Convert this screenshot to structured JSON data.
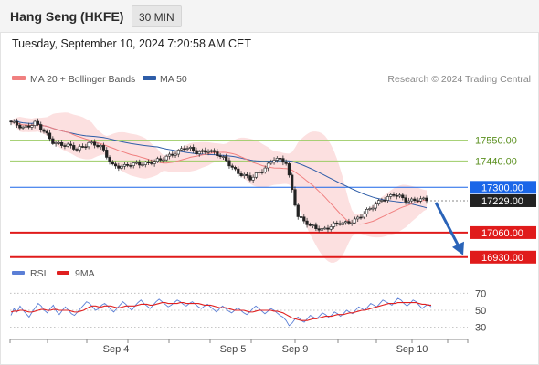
{
  "header": {
    "title": "Hang Seng (HKFE)",
    "timeframe": "30 MIN"
  },
  "datetime": "Tuesday, September 10, 2024 7:20:58 AM CET",
  "legend": {
    "ma20": {
      "label": "MA 20 + Bollinger Bands",
      "color": "#f08080"
    },
    "ma50": {
      "label": "MA 50",
      "color": "#2e5da8"
    },
    "copyright": "Research © 2024 Trading Central"
  },
  "rsi_legend": {
    "rsi": {
      "label": "RSI",
      "color": "#5b7fd6"
    },
    "ma9": {
      "label": "9MA",
      "color": "#e02020"
    }
  },
  "chart_data": [
    {
      "type": "candlestick",
      "title": "Hang Seng (HKFE)",
      "ylim": [
        16900,
        17790
      ],
      "x_ticks": [
        "Sep 4",
        "Sep 5",
        "Sep 9",
        "Sep 10"
      ],
      "levels": [
        {
          "value": 17550,
          "label": "17550.00",
          "kind": "resistance",
          "color": "#9ccc65"
        },
        {
          "value": 17440,
          "label": "17440.00",
          "kind": "resistance",
          "color": "#9ccc65"
        },
        {
          "value": 17300,
          "label": "17300.00",
          "kind": "pivot",
          "color": "#1a66e8"
        },
        {
          "value": 17229,
          "label": "17229.00",
          "kind": "last",
          "color": "#222222"
        },
        {
          "value": 17060,
          "label": "17060.00",
          "kind": "support",
          "color": "#e01b1b"
        },
        {
          "value": 16930,
          "label": "16930.00",
          "kind": "support",
          "color": "#e01b1b"
        }
      ],
      "forecast_arrow": {
        "from": 17229,
        "to": 16930,
        "color": "#2a63b8"
      },
      "anchors": [
        {
          "i": 0,
          "v": 17640
        },
        {
          "i": 4,
          "v": 17620
        },
        {
          "i": 8,
          "v": 17640
        },
        {
          "i": 14,
          "v": 17545
        },
        {
          "i": 22,
          "v": 17500
        },
        {
          "i": 26,
          "v": 17540
        },
        {
          "i": 30,
          "v": 17510
        },
        {
          "i": 34,
          "v": 17420
        },
        {
          "i": 38,
          "v": 17410
        },
        {
          "i": 44,
          "v": 17430
        },
        {
          "i": 50,
          "v": 17440
        },
        {
          "i": 54,
          "v": 17480
        },
        {
          "i": 58,
          "v": 17510
        },
        {
          "i": 62,
          "v": 17485
        },
        {
          "i": 66,
          "v": 17500
        },
        {
          "i": 72,
          "v": 17440
        },
        {
          "i": 76,
          "v": 17380
        },
        {
          "i": 80,
          "v": 17340
        },
        {
          "i": 84,
          "v": 17395
        },
        {
          "i": 88,
          "v": 17450
        },
        {
          "i": 92,
          "v": 17430
        },
        {
          "i": 96,
          "v": 17150
        },
        {
          "i": 100,
          "v": 17090
        },
        {
          "i": 104,
          "v": 17080
        },
        {
          "i": 108,
          "v": 17100
        },
        {
          "i": 112,
          "v": 17110
        },
        {
          "i": 116,
          "v": 17140
        },
        {
          "i": 120,
          "v": 17180
        },
        {
          "i": 124,
          "v": 17240
        },
        {
          "i": 128,
          "v": 17260
        },
        {
          "i": 132,
          "v": 17230
        },
        {
          "i": 136,
          "v": 17240
        },
        {
          "i": 139,
          "v": 17229
        }
      ],
      "candle_count": 140
    },
    {
      "type": "line",
      "title": "RSI",
      "ylim": [
        20,
        80
      ],
      "yticks": [
        70,
        50,
        30
      ],
      "series": [
        {
          "name": "RSI",
          "values": [
            44,
            52,
            48,
            55,
            50,
            46,
            42,
            48,
            53,
            58,
            55,
            50,
            47,
            52,
            56,
            49,
            45,
            50,
            54,
            50,
            46,
            44,
            48,
            52,
            56,
            60,
            58,
            54,
            50,
            52,
            56,
            58,
            55,
            51,
            48,
            52,
            56,
            60,
            57,
            53,
            50,
            55,
            59,
            62,
            58,
            55,
            52,
            56,
            60,
            63,
            60,
            57,
            54,
            56,
            59,
            62,
            60,
            57,
            55,
            58,
            60,
            57,
            54,
            52,
            55,
            57,
            54,
            51,
            48,
            52,
            55,
            52,
            49,
            47,
            50,
            53,
            50,
            47,
            45,
            48,
            52,
            55,
            52,
            49,
            46,
            49,
            52,
            50,
            47,
            44,
            42,
            38,
            32,
            35,
            40,
            42,
            38,
            36,
            40,
            44,
            42,
            40,
            43,
            47,
            45,
            42,
            44,
            48,
            46,
            43,
            46,
            50,
            48,
            46,
            50,
            54,
            52,
            50,
            54,
            58,
            56,
            54,
            58,
            62,
            60,
            58,
            56,
            60,
            64,
            62,
            58,
            55,
            58,
            62,
            60,
            56,
            52,
            55,
            57,
            54
          ]
        },
        {
          "name": "9MA",
          "values": [
            48,
            49,
            49,
            50,
            50,
            49,
            48,
            48,
            49,
            50,
            51,
            51,
            50,
            50,
            51,
            51,
            50,
            50,
            50,
            50,
            49,
            48,
            48,
            49,
            50,
            52,
            54,
            55,
            55,
            54,
            54,
            55,
            55,
            55,
            54,
            53,
            53,
            54,
            55,
            55,
            55,
            55,
            56,
            57,
            57,
            57,
            56,
            56,
            57,
            58,
            59,
            59,
            58,
            58,
            58,
            58,
            59,
            59,
            58,
            58,
            58,
            58,
            58,
            57,
            56,
            56,
            56,
            55,
            54,
            53,
            53,
            53,
            52,
            51,
            50,
            50,
            50,
            50,
            49,
            48,
            48,
            49,
            50,
            50,
            50,
            50,
            50,
            49,
            49,
            48,
            47,
            45,
            43,
            41,
            40,
            39,
            38,
            38,
            38,
            39,
            40,
            40,
            41,
            42,
            43,
            43,
            43,
            44,
            45,
            45,
            45,
            46,
            47,
            47,
            48,
            49,
            50,
            50,
            51,
            52,
            53,
            54,
            55,
            56,
            57,
            58,
            58,
            58,
            59,
            59,
            59,
            59,
            59,
            59,
            59,
            58,
            57,
            57,
            56,
            56
          ]
        }
      ]
    }
  ]
}
